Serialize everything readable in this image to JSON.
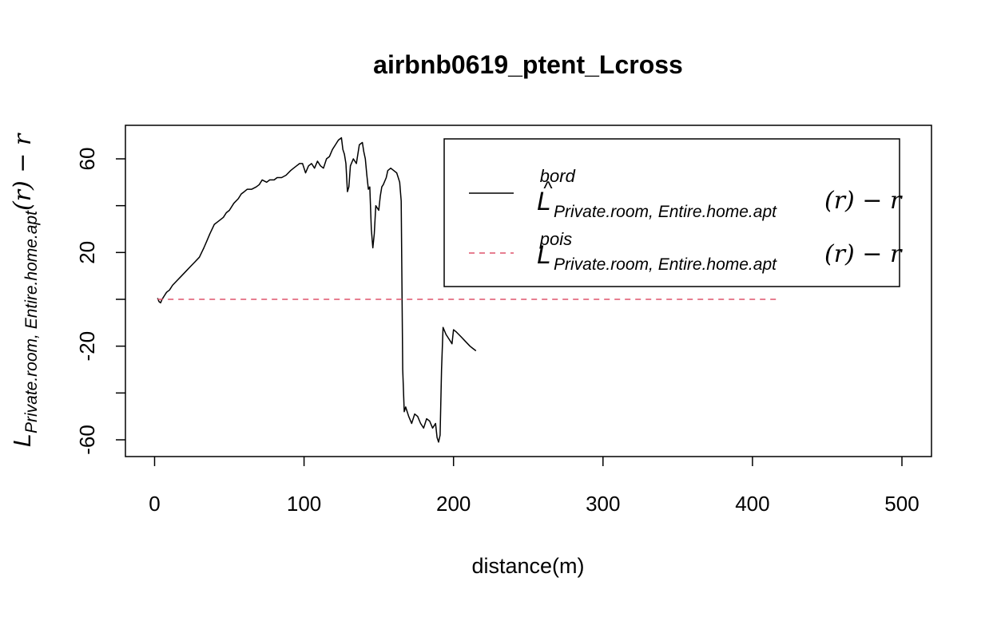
{
  "chart_data": {
    "type": "line",
    "title": "airbnb0619_ptent_Lcross",
    "xlabel": "distance(m)",
    "ylabel": {
      "main": "L",
      "sub": "Private.room, Entire.home.apt",
      "tail": "(r) − r"
    },
    "xlim": [
      -10,
      520
    ],
    "ylim": [
      -67,
      74
    ],
    "x_ticks": [
      0,
      100,
      200,
      300,
      400,
      500
    ],
    "y_ticks": [
      -60,
      -40,
      -20,
      0,
      20,
      40,
      60
    ],
    "y_tick_labels": [
      "-60",
      "-20",
      "20",
      "60"
    ],
    "grid": false,
    "legend_position": "top-right",
    "legend": [
      {
        "main": "L",
        "hat": "^",
        "sup": "bord",
        "sub": "Private.room, Entire.home.apt",
        "tail": "(r) − r",
        "line": "solid",
        "color": "#000000"
      },
      {
        "main": "L",
        "hat": "",
        "sup": "pois",
        "sub": "Private.room, Entire.home.apt",
        "tail": "(r) − r",
        "line": "dashed",
        "color": "#DF536B"
      }
    ],
    "series": [
      {
        "name": "bord",
        "color": "#000000",
        "style": "solid",
        "x": [
          2,
          3,
          4,
          5,
          7,
          8,
          10,
          12,
          15,
          18,
          21,
          24,
          27,
          30,
          33,
          35,
          37,
          40,
          42,
          44,
          46,
          48,
          50,
          53,
          56,
          58,
          60,
          62,
          65,
          68,
          70,
          72,
          75,
          77,
          80,
          82,
          85,
          88,
          91,
          93,
          95,
          97,
          99,
          100,
          101,
          103,
          105,
          107,
          109,
          111,
          113,
          115,
          117,
          119,
          121,
          123,
          125,
          126,
          127,
          128,
          129,
          130,
          131,
          133,
          135,
          137,
          139,
          140,
          141,
          142,
          143,
          144,
          145,
          146,
          147,
          148,
          150,
          151,
          152,
          153,
          155,
          156,
          158,
          160,
          162,
          163,
          164,
          165,
          166,
          167,
          168,
          170,
          172,
          174,
          176,
          178,
          180,
          182,
          184,
          186,
          188,
          189,
          190,
          191,
          192,
          193,
          195,
          197,
          199,
          200,
          202,
          205,
          208,
          211,
          213,
          215
        ],
        "y": [
          0.5,
          -1,
          -1.5,
          0,
          2,
          3,
          4,
          6,
          8,
          10,
          12,
          14,
          16,
          18,
          22,
          25,
          28,
          32,
          33,
          34,
          35,
          37,
          38,
          41,
          43,
          45,
          46,
          47,
          47,
          48,
          49,
          51,
          50,
          51,
          51,
          52,
          52,
          53,
          55,
          56,
          57,
          58,
          58,
          56,
          54,
          57,
          58,
          56,
          59,
          57,
          56,
          60,
          61,
          64,
          66,
          68,
          69,
          64,
          62,
          58,
          46,
          48,
          57,
          60,
          58,
          66,
          67,
          63,
          60,
          53,
          47,
          48,
          30,
          22,
          28,
          40,
          38,
          44,
          48,
          49,
          52,
          55,
          56,
          55,
          54,
          52,
          50,
          42,
          -30,
          -48,
          -46,
          -50,
          -53,
          -49,
          -50,
          -53,
          -55,
          -51,
          -52,
          -55,
          -53,
          -59,
          -61,
          -58,
          -30,
          -12,
          -15,
          -17,
          -19,
          -13,
          -14,
          -16,
          -18,
          -20,
          -21,
          -22
        ],
        "y_override_note": ""
      },
      {
        "name": "pois",
        "color": "#DF536B",
        "style": "dashed",
        "x": [
          2,
          418
        ],
        "y": [
          0,
          0
        ]
      }
    ]
  }
}
